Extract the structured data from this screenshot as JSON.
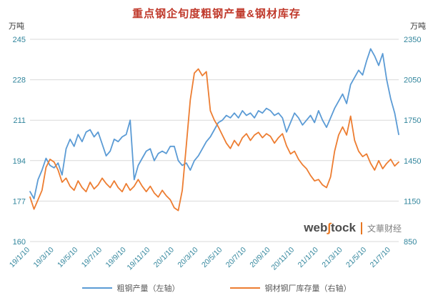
{
  "chart_data": {
    "type": "line",
    "title": "重点钢企旬度粗钢产量&钢材库存",
    "left_axis": {
      "unit": "万吨",
      "min": 160,
      "max": 245,
      "ticks": [
        245,
        228,
        211,
        194,
        177,
        160
      ]
    },
    "right_axis": {
      "unit": "万吨",
      "min": 850,
      "max": 2350,
      "ticks": [
        2350,
        2050,
        1750,
        1450,
        1150,
        850
      ]
    },
    "x_tick_labels": [
      "19/1/10",
      "19/3/10",
      "19/5/10",
      "19/7/10",
      "19/9/10",
      "19/11/10",
      "20/1/10",
      "20/3/10",
      "20/5/10",
      "20/7/10",
      "20/9/10",
      "20/11/10",
      "21/1/10",
      "21/3/10",
      "21/5/10",
      "21/7/10"
    ],
    "x_tick_every": 6,
    "grid": true,
    "legend_position": "bottom",
    "colors": {
      "grid": "#d9d9d9",
      "tick": "#31859c",
      "title": "#c0392b"
    },
    "series": [
      {
        "name": "粗钢产量（左轴）",
        "axis": "left",
        "color": "#5B9BD5",
        "values": [
          181,
          178,
          186,
          190,
          195,
          192,
          191,
          193,
          188,
          199,
          203,
          200,
          205,
          202,
          206,
          207,
          204,
          206,
          201,
          196,
          198,
          203,
          202,
          204,
          205,
          211,
          186,
          192,
          195,
          198,
          199,
          194,
          197,
          198,
          197,
          200,
          200,
          194,
          192,
          193,
          190,
          194,
          196,
          199,
          202,
          204,
          207,
          210,
          211,
          213,
          212,
          214,
          212,
          215,
          213,
          214,
          212,
          215,
          214,
          216,
          215,
          213,
          214,
          212,
          206,
          210,
          214,
          212,
          209,
          211,
          213,
          210,
          215,
          211,
          208,
          212,
          216,
          219,
          222,
          218,
          226,
          229,
          232,
          230,
          236,
          241,
          238,
          234,
          239,
          228,
          220,
          214,
          205
        ]
      },
      {
        "name": "钢材钢厂库存量（右轴）",
        "axis": "right",
        "color": "#ED7D31",
        "values": [
          1180,
          1090,
          1160,
          1230,
          1400,
          1460,
          1440,
          1380,
          1290,
          1320,
          1260,
          1230,
          1300,
          1250,
          1220,
          1290,
          1240,
          1270,
          1320,
          1280,
          1250,
          1300,
          1250,
          1220,
          1280,
          1230,
          1260,
          1310,
          1260,
          1220,
          1260,
          1210,
          1180,
          1230,
          1190,
          1160,
          1100,
          1080,
          1230,
          1560,
          1900,
          2100,
          2130,
          2080,
          2110,
          1820,
          1750,
          1700,
          1640,
          1580,
          1540,
          1600,
          1560,
          1620,
          1650,
          1600,
          1640,
          1660,
          1620,
          1650,
          1630,
          1580,
          1620,
          1650,
          1560,
          1500,
          1520,
          1460,
          1420,
          1390,
          1340,
          1300,
          1310,
          1270,
          1250,
          1330,
          1520,
          1640,
          1700,
          1640,
          1780,
          1600,
          1520,
          1480,
          1500,
          1430,
          1380,
          1450,
          1390,
          1430,
          1460,
          1410,
          1440
        ]
      }
    ]
  },
  "watermark": {
    "latin_pre": "web",
    "latin_s": "∫",
    "latin_post": "tock",
    "cn": "文華财经"
  }
}
